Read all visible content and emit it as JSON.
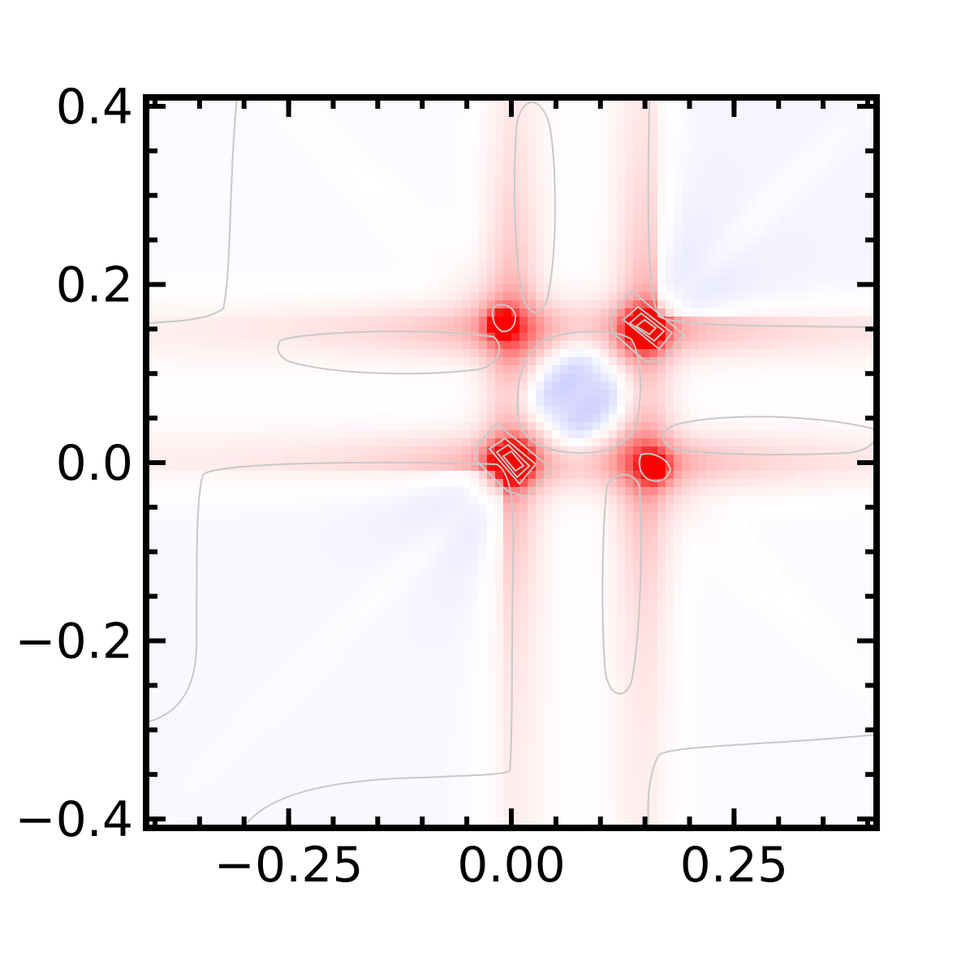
{
  "chart_data": {
    "type": "heatmap",
    "title": "",
    "xlabel": "",
    "ylabel": "",
    "xlim": [
      -0.41,
      0.41
    ],
    "ylim": [
      -0.41,
      0.41
    ],
    "x_ticks": [
      -0.25,
      0.0,
      0.25
    ],
    "x_tick_labels": [
      "−0.25",
      "0.00",
      "0.25"
    ],
    "x_minor_step": 0.05,
    "y_ticks": [
      -0.4,
      -0.2,
      0.0,
      0.2,
      0.4
    ],
    "y_tick_labels": [
      "−0.4",
      "−0.2",
      "0.0",
      "0.2",
      "0.4"
    ],
    "y_minor_step": 0.05,
    "grid": false,
    "colormap": "bwr",
    "colors": {
      "negative": "#0000ff",
      "zero": "#ffffff",
      "positive": "#ff0000",
      "contour": "#c8c8c8",
      "axes": "#000000"
    },
    "peaks": [
      {
        "x": 0.0,
        "y": 0.0,
        "sign": "positive",
        "note": "strongest red peak"
      },
      {
        "x": 0.15,
        "y": 0.15,
        "sign": "positive",
        "note": "strong red peak"
      },
      {
        "x": -0.01,
        "y": 0.155,
        "sign": "positive"
      },
      {
        "x": 0.16,
        "y": -0.005,
        "sign": "positive"
      }
    ],
    "negative_regions": [
      {
        "x_range": [
          0.01,
          0.14
        ],
        "y_range": [
          0.01,
          0.14
        ]
      },
      {
        "x_range": [
          0.15,
          0.41
        ],
        "y_range": [
          0.16,
          0.41
        ]
      },
      {
        "x_range": [
          -0.41,
          -0.01
        ],
        "y_range": [
          -0.41,
          -0.01
        ]
      }
    ]
  }
}
